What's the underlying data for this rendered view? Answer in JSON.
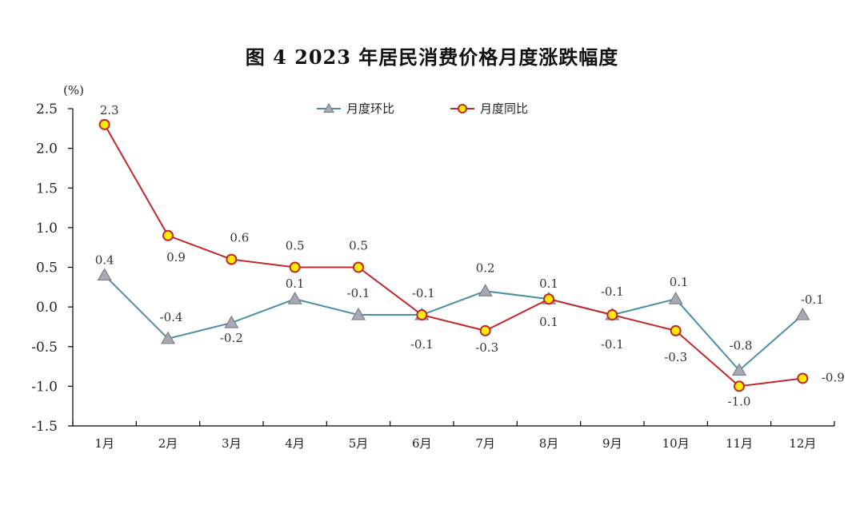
{
  "chart_data": {
    "type": "line",
    "title": "图 4   2023 年居民消费价格月度涨跌幅度",
    "ylabel": "(%)",
    "xlabel": "",
    "ylim": [
      -1.5,
      2.5
    ],
    "yticks": [
      "2.5",
      "2.0",
      "1.5",
      "1.0",
      "0.5",
      "0.0",
      "-0.5",
      "-1.0",
      "-1.5"
    ],
    "ytick_values": [
      2.5,
      2.0,
      1.5,
      1.0,
      0.5,
      0.0,
      -0.5,
      -1.0,
      -1.5
    ],
    "categories": [
      "1月",
      "2月",
      "3月",
      "4月",
      "5月",
      "6月",
      "7月",
      "8月",
      "9月",
      "10月",
      "11月",
      "12月"
    ],
    "legend_position": "top-center",
    "grid": false,
    "series": [
      {
        "name": "月度环比",
        "color": "#4a90a4",
        "marker": "triangle",
        "marker_color": "#a9a9b3",
        "values": [
          0.4,
          -0.4,
          -0.2,
          0.1,
          -0.1,
          -0.1,
          0.2,
          0.1,
          -0.1,
          0.1,
          -0.8,
          -0.1
        ],
        "labels": [
          "0.4",
          "-0.4",
          "-0.2",
          "0.1",
          "-0.1",
          "-0.1",
          "0.2",
          "0.1",
          "-0.1",
          "0.1",
          "-0.8",
          "-0.1"
        ]
      },
      {
        "name": "月度同比",
        "color": "#c0282d",
        "marker": "circle",
        "marker_color": "#ffee00",
        "values": [
          2.3,
          0.9,
          0.6,
          0.5,
          0.5,
          -0.1,
          -0.3,
          0.1,
          -0.1,
          -0.3,
          -1.0,
          -0.9
        ],
        "labels": [
          "2.3",
          "0.9",
          "0.6",
          "0.5",
          "0.5",
          "-0.1",
          "-0.3",
          "0.1",
          "-0.1",
          "-0.3",
          "-1.0",
          "-0.9"
        ]
      }
    ]
  }
}
